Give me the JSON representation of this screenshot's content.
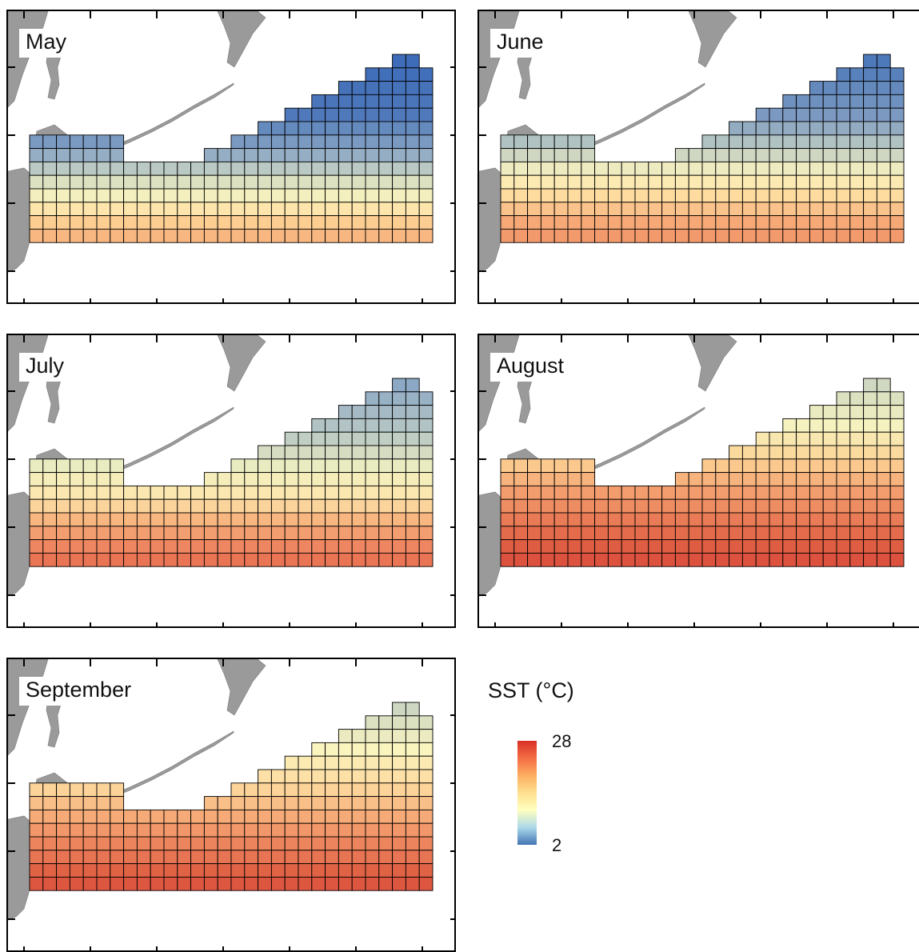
{
  "panels": [
    {
      "label": "May",
      "gradient": [
        [
          0.0,
          "#3e6cb8"
        ],
        [
          0.28,
          "#4e78bb"
        ],
        [
          0.48,
          "#8aa6c4"
        ],
        [
          0.62,
          "#d4dcc2"
        ],
        [
          0.74,
          "#fdf4bd"
        ],
        [
          0.86,
          "#fccd90"
        ],
        [
          1.0,
          "#f4a072"
        ]
      ]
    },
    {
      "label": "June",
      "gradient": [
        [
          0.0,
          "#4d79ba"
        ],
        [
          0.3,
          "#7d9bc1"
        ],
        [
          0.48,
          "#c6d1c3"
        ],
        [
          0.6,
          "#fbf3bf"
        ],
        [
          0.72,
          "#fedb9e"
        ],
        [
          0.86,
          "#f6a876"
        ],
        [
          1.0,
          "#ef8c62"
        ]
      ]
    },
    {
      "label": "July",
      "gradient": [
        [
          0.0,
          "#8ca8c4"
        ],
        [
          0.26,
          "#b9c9c4"
        ],
        [
          0.46,
          "#f2f1c0"
        ],
        [
          0.6,
          "#fde6ac"
        ],
        [
          0.72,
          "#f8b47e"
        ],
        [
          0.86,
          "#ee8560"
        ],
        [
          1.0,
          "#e56548"
        ]
      ]
    },
    {
      "label": "August",
      "gradient": [
        [
          0.0,
          "#d0d8c1"
        ],
        [
          0.22,
          "#f6f3bf"
        ],
        [
          0.4,
          "#fcd294"
        ],
        [
          0.56,
          "#f4a070"
        ],
        [
          0.72,
          "#e97a55"
        ],
        [
          0.86,
          "#df5c42"
        ],
        [
          1.0,
          "#d8473a"
        ]
      ]
    },
    {
      "label": "September",
      "gradient": [
        [
          0.0,
          "#cdd7c2"
        ],
        [
          0.22,
          "#fbf5bf"
        ],
        [
          0.42,
          "#fcd69a"
        ],
        [
          0.58,
          "#f5a775"
        ],
        [
          0.72,
          "#ec845c"
        ],
        [
          0.86,
          "#e16246"
        ],
        [
          1.0,
          "#d9493a"
        ]
      ]
    }
  ],
  "legend": {
    "title": "SST (°C)",
    "max_label": "28",
    "min_label": "2",
    "scale_colors": [
      "#d73027",
      "#f46d43",
      "#fdae61",
      "#fee090",
      "#ffffbf",
      "#abd9e9",
      "#4575b4"
    ]
  },
  "colors": {
    "land": "#9a9a9a",
    "grid_line": "#000000",
    "background": "#ffffff"
  }
}
